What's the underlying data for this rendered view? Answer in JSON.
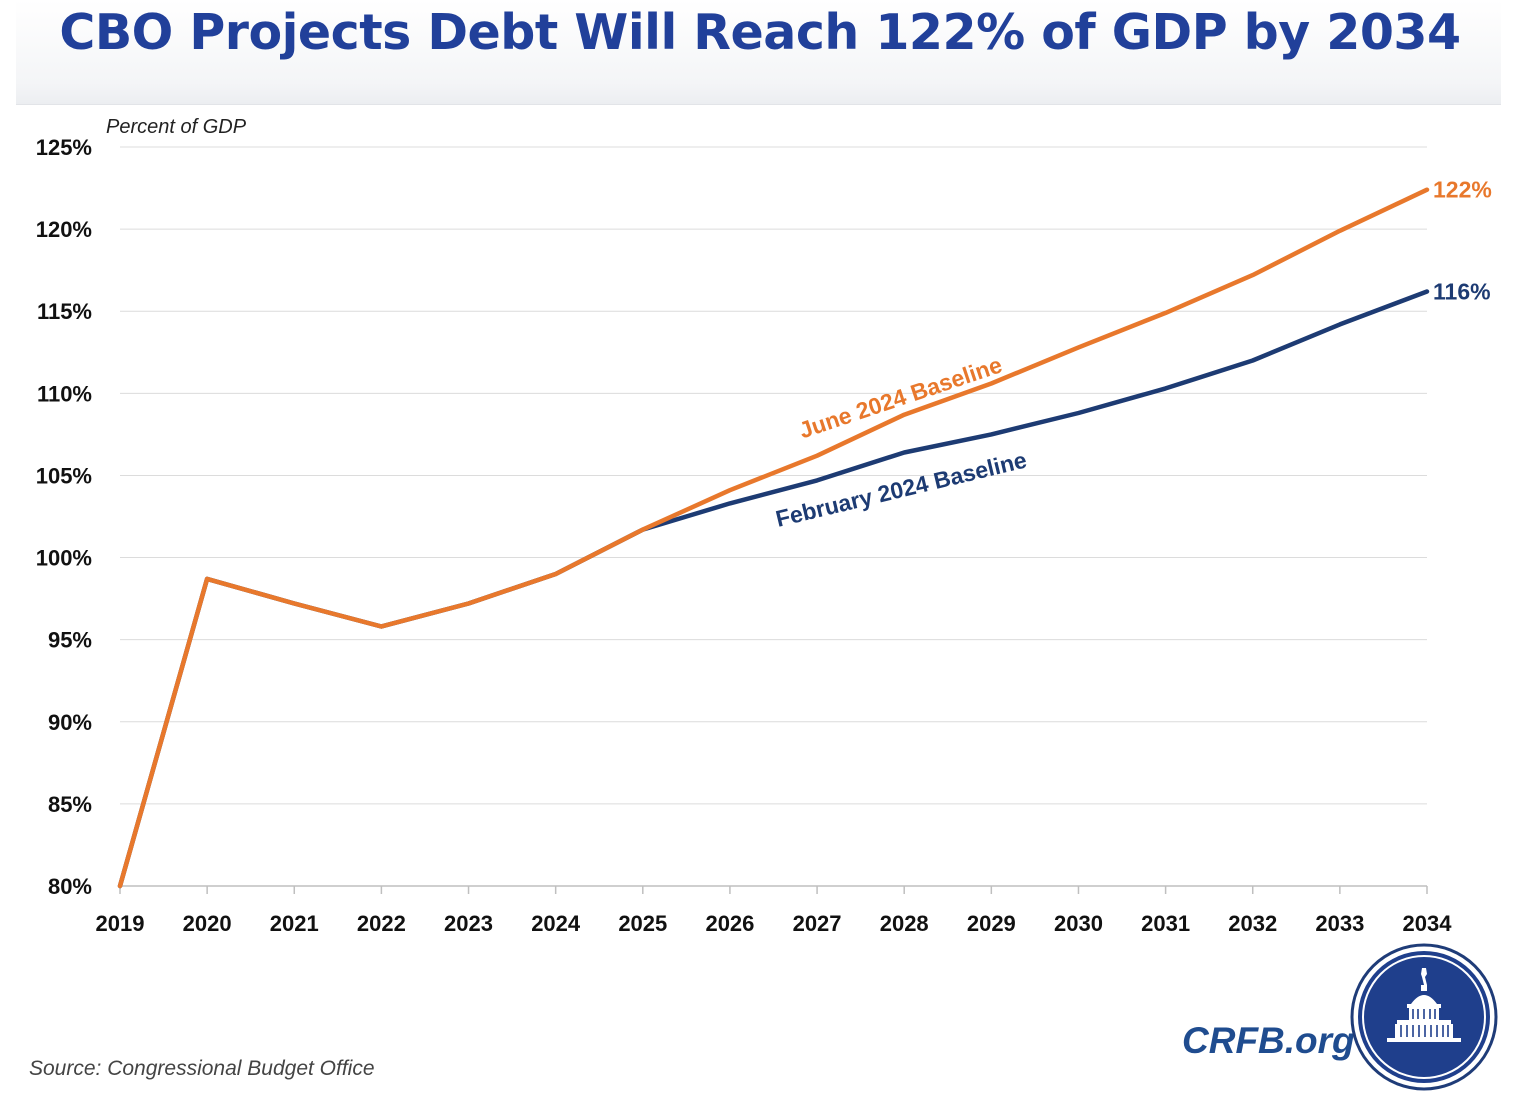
{
  "title": "CBO Projects Debt Will Reach 122% of GDP by 2034",
  "source": "Source: Congressional Budget Office",
  "brand": "CRFB.org",
  "colors": {
    "title": "#21409a",
    "june": "#e8782c",
    "february": "#1d3b73",
    "grid": "#dcdcdc",
    "brand": "#1f4c8f"
  },
  "icons": {
    "logo": "capitol-dome-seal-icon"
  },
  "chart_data": {
    "type": "line",
    "title": "CBO Projects Debt Will Reach 122% of GDP by 2034",
    "ylabel": "Percent of GDP",
    "xlabel": "",
    "ylim": [
      80,
      125
    ],
    "yticks": [
      80,
      85,
      90,
      95,
      100,
      105,
      110,
      115,
      120,
      125
    ],
    "ytick_labels": [
      "80%",
      "85%",
      "90%",
      "95%",
      "100%",
      "105%",
      "110%",
      "115%",
      "120%",
      "125%"
    ],
    "x": [
      "2019",
      "2020",
      "2021",
      "2022",
      "2023",
      "2024",
      "2025",
      "2026",
      "2027",
      "2028",
      "2029",
      "2030",
      "2031",
      "2032",
      "2033",
      "2034"
    ],
    "grid": "horizontal",
    "legend": "inline labels",
    "series": [
      {
        "name": "February 2024 Baseline",
        "color": "#1d3b73",
        "values": [
          80,
          98.7,
          97.2,
          95.8,
          97.2,
          99.0,
          101.7,
          103.3,
          104.7,
          106.4,
          107.5,
          108.8,
          110.3,
          112.0,
          114.2,
          116.2
        ],
        "end_label": "116%"
      },
      {
        "name": "June 2024 Baseline",
        "color": "#e8782c",
        "values": [
          80,
          98.7,
          97.2,
          95.8,
          97.2,
          99.0,
          101.7,
          104.1,
          106.2,
          108.7,
          110.6,
          112.8,
          114.9,
          117.2,
          119.9,
          122.4
        ],
        "end_label": "122%"
      }
    ]
  }
}
